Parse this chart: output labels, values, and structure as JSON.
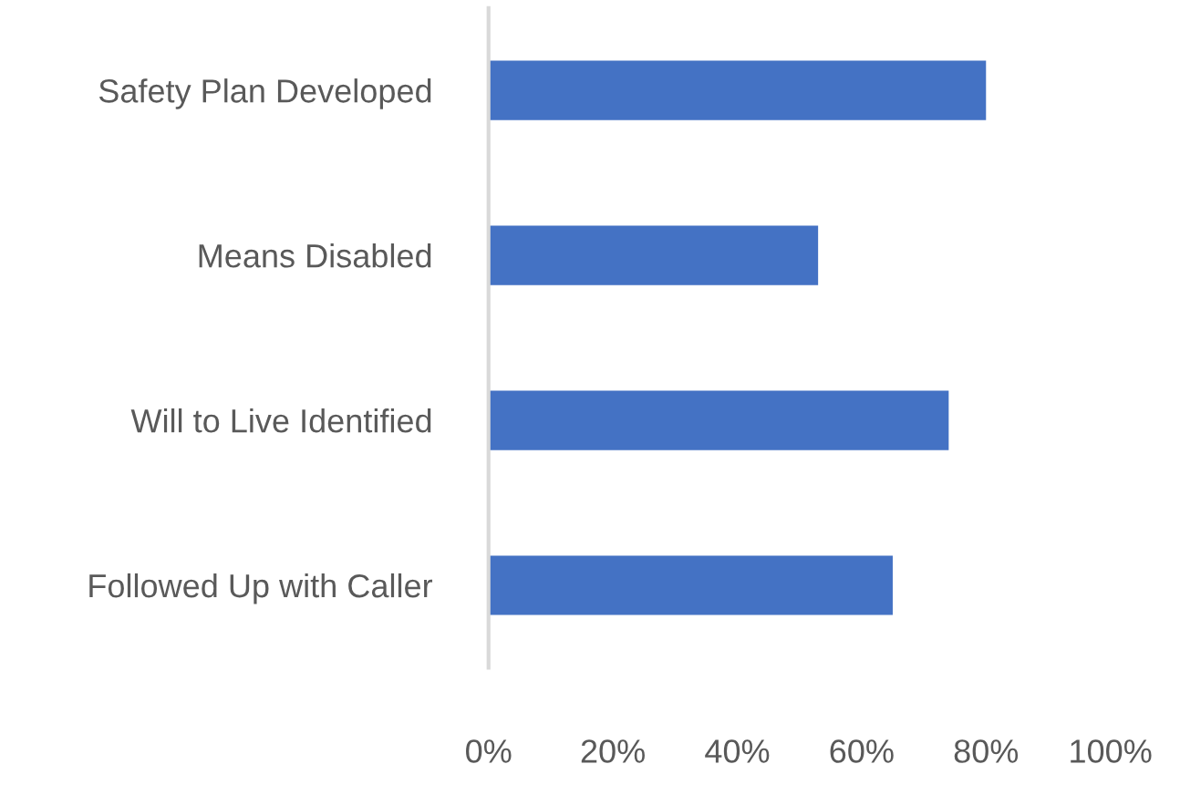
{
  "chart_data": {
    "type": "bar",
    "orientation": "horizontal",
    "categories": [
      "Safety Plan Developed",
      "Means Disabled",
      "Will to Live Identified",
      "Followed Up with Caller"
    ],
    "values": [
      80,
      53,
      74,
      65
    ],
    "color": "#4472c4",
    "xlim": [
      0,
      100
    ],
    "xticks": [
      {
        "value": 0,
        "label": "0%"
      },
      {
        "value": 20,
        "label": "20%"
      },
      {
        "value": 40,
        "label": "40%"
      },
      {
        "value": 60,
        "label": "60%"
      },
      {
        "value": 80,
        "label": "80%"
      },
      {
        "value": 100,
        "label": "100%"
      }
    ],
    "grid": false,
    "legend": false
  }
}
